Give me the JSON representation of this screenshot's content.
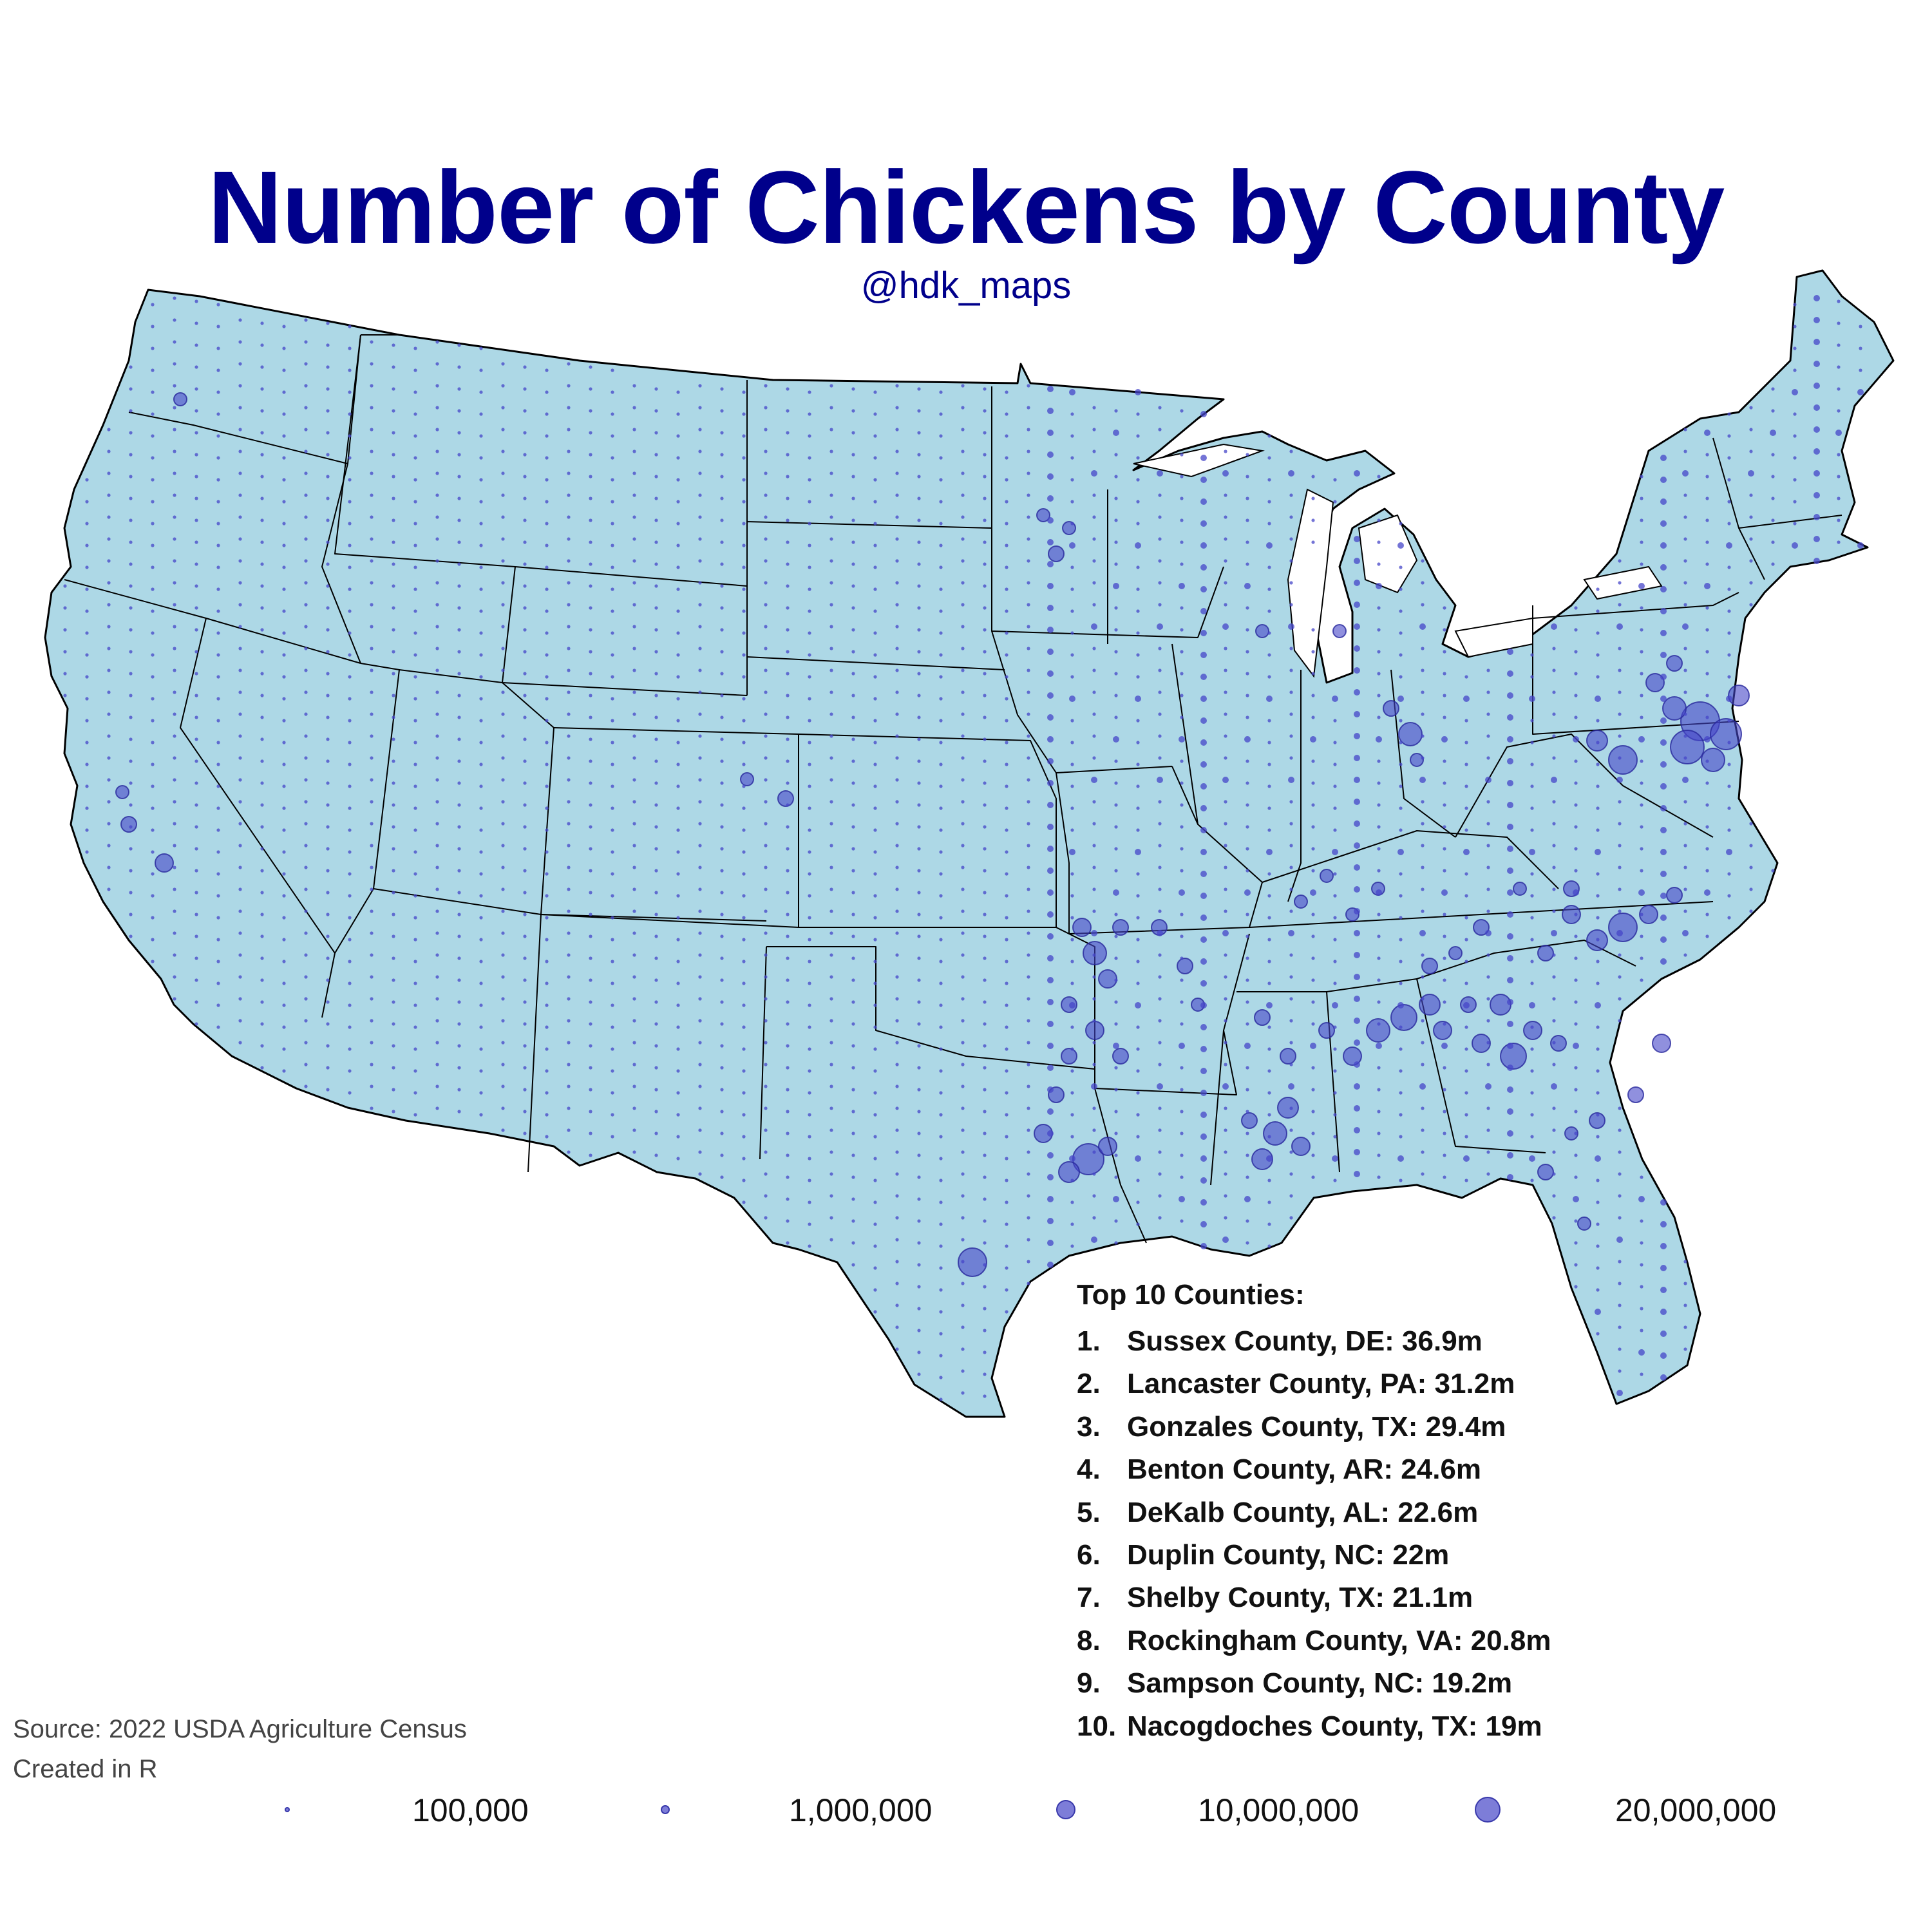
{
  "title": "Number of Chickens by County",
  "subtitle": "@hdk_maps",
  "map": {
    "region": "Contiguous United States",
    "unit": "County",
    "land_color": "#add8e6",
    "no_data_color": "#e8e8e8",
    "bubble_color": "#4646c8",
    "state_border_color": "#000000"
  },
  "top10": {
    "heading": "Top 10 Counties:",
    "items": [
      {
        "rank": "1.",
        "text": "Sussex County, DE: 36.9m"
      },
      {
        "rank": "2.",
        "text": "Lancaster County, PA: 31.2m"
      },
      {
        "rank": "3.",
        "text": "Gonzales County, TX: 29.4m"
      },
      {
        "rank": "4.",
        "text": "Benton County, AR: 24.6m"
      },
      {
        "rank": "5.",
        "text": "DeKalb County, AL: 22.6m"
      },
      {
        "rank": "6.",
        "text": "Duplin County, NC: 22m"
      },
      {
        "rank": "7.",
        "text": "Shelby County, TX: 21.1m"
      },
      {
        "rank": "8.",
        "text": "Rockingham County, VA: 20.8m"
      },
      {
        "rank": "9.",
        "text": "Sampson County, NC: 19.2m"
      },
      {
        "rank": "10.",
        "text": "Nacogdoches County, TX: 19m"
      }
    ]
  },
  "source_lines": [
    "Source: 2022 USDA Agriculture Census",
    "Created in R"
  ],
  "legend": [
    {
      "value": 100000,
      "label": "100,000"
    },
    {
      "value": 1000000,
      "label": "1,000,000"
    },
    {
      "value": 10000000,
      "label": "10,000,000"
    },
    {
      "value": 20000000,
      "label": "20,000,000"
    }
  ]
}
